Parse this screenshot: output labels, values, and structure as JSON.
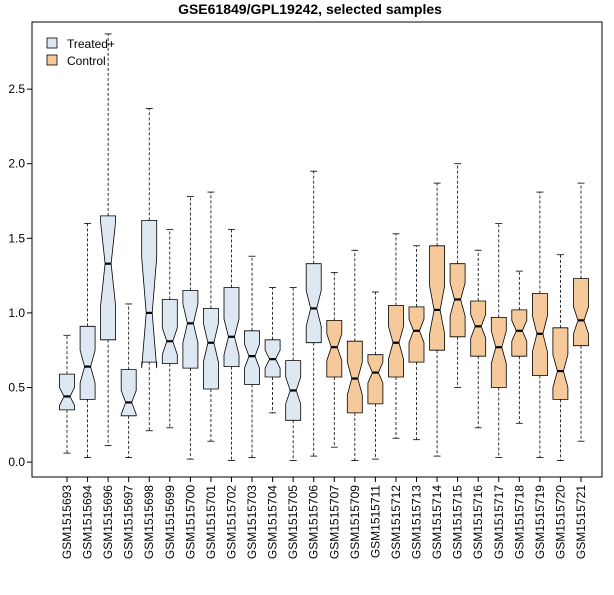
{
  "chart_data": {
    "type": "boxplot",
    "title": "GSE61849/GPL19242, selected samples",
    "xlabel": "",
    "ylabel": "",
    "ylim": [
      -0.1,
      2.95
    ],
    "yticks": [
      0.0,
      0.5,
      1.0,
      1.5,
      2.0,
      2.5
    ],
    "ytick_labels": [
      "0.0",
      "0.5",
      "1.0",
      "1.5",
      "2.0",
      "2.5"
    ],
    "notched": true,
    "grid": false,
    "legend": {
      "position": "top-left",
      "entries": [
        {
          "label": "Treated+",
          "color": "#dde8f3"
        },
        {
          "label": "Control",
          "color": "#f5c99a"
        }
      ]
    },
    "colors": {
      "Treated+": "#dde8f3",
      "Control": "#f5c99a",
      "stroke": "#000000"
    },
    "samples": [
      {
        "name": "GSM1515693",
        "group": "Treated+",
        "min": 0.06,
        "q1": 0.35,
        "median": 0.44,
        "q3": 0.59,
        "max": 0.85,
        "notch_lo": 0.38,
        "notch_hi": 0.5
      },
      {
        "name": "GSM1515694",
        "group": "Treated+",
        "min": 0.03,
        "q1": 0.42,
        "median": 0.64,
        "q3": 0.91,
        "max": 1.6,
        "notch_lo": 0.53,
        "notch_hi": 0.75
      },
      {
        "name": "GSM1515696",
        "group": "Treated+",
        "min": 0.11,
        "q1": 0.82,
        "median": 1.33,
        "q3": 1.65,
        "max": 2.87,
        "notch_lo": 1.05,
        "notch_hi": 1.61
      },
      {
        "name": "GSM1515697",
        "group": "Treated+",
        "min": 0.03,
        "q1": 0.31,
        "median": 0.4,
        "q3": 0.62,
        "max": 1.06,
        "notch_lo": 0.32,
        "notch_hi": 0.48
      },
      {
        "name": "GSM1515698",
        "group": "Treated+",
        "min": 0.21,
        "q1": 0.67,
        "median": 1.0,
        "q3": 1.62,
        "max": 2.37,
        "notch_lo": 0.63,
        "notch_hi": 1.37
      },
      {
        "name": "GSM1515699",
        "group": "Treated+",
        "min": 0.23,
        "q1": 0.66,
        "median": 0.81,
        "q3": 1.09,
        "max": 1.56,
        "notch_lo": 0.72,
        "notch_hi": 0.9
      },
      {
        "name": "GSM1515700",
        "group": "Treated+",
        "min": 0.02,
        "q1": 0.63,
        "median": 0.93,
        "q3": 1.15,
        "max": 1.78,
        "notch_lo": 0.8,
        "notch_hi": 1.06
      },
      {
        "name": "GSM1515701",
        "group": "Treated+",
        "min": 0.14,
        "q1": 0.49,
        "median": 0.8,
        "q3": 1.03,
        "max": 1.81,
        "notch_lo": 0.67,
        "notch_hi": 0.93
      },
      {
        "name": "GSM1515702",
        "group": "Treated+",
        "min": 0.01,
        "q1": 0.64,
        "median": 0.84,
        "q3": 1.17,
        "max": 1.56,
        "notch_lo": 0.72,
        "notch_hi": 0.96
      },
      {
        "name": "GSM1515703",
        "group": "Treated+",
        "min": 0.03,
        "q1": 0.52,
        "median": 0.71,
        "q3": 0.88,
        "max": 1.38,
        "notch_lo": 0.63,
        "notch_hi": 0.79
      },
      {
        "name": "GSM1515704",
        "group": "Treated+",
        "min": 0.33,
        "q1": 0.57,
        "median": 0.69,
        "q3": 0.82,
        "max": 1.17,
        "notch_lo": 0.63,
        "notch_hi": 0.75
      },
      {
        "name": "GSM1515705",
        "group": "Treated+",
        "min": 0.01,
        "q1": 0.28,
        "median": 0.48,
        "q3": 0.68,
        "max": 1.17,
        "notch_lo": 0.39,
        "notch_hi": 0.57
      },
      {
        "name": "GSM1515706",
        "group": "Treated+",
        "min": 0.04,
        "q1": 0.8,
        "median": 1.03,
        "q3": 1.33,
        "max": 1.95,
        "notch_lo": 0.91,
        "notch_hi": 1.15
      },
      {
        "name": "GSM1515707",
        "group": "Control",
        "min": 0.1,
        "q1": 0.57,
        "median": 0.77,
        "q3": 0.95,
        "max": 1.27,
        "notch_lo": 0.68,
        "notch_hi": 0.86
      },
      {
        "name": "GSM1515709",
        "group": "Control",
        "min": 0.01,
        "q1": 0.33,
        "median": 0.56,
        "q3": 0.81,
        "max": 1.42,
        "notch_lo": 0.45,
        "notch_hi": 0.67
      },
      {
        "name": "GSM1515711",
        "group": "Control",
        "min": 0.02,
        "q1": 0.39,
        "median": 0.6,
        "q3": 0.72,
        "max": 1.14,
        "notch_lo": 0.53,
        "notch_hi": 0.67
      },
      {
        "name": "GSM1515712",
        "group": "Control",
        "min": 0.16,
        "q1": 0.57,
        "median": 0.8,
        "q3": 1.05,
        "max": 1.53,
        "notch_lo": 0.69,
        "notch_hi": 0.91
      },
      {
        "name": "GSM1515713",
        "group": "Control",
        "min": 0.15,
        "q1": 0.67,
        "median": 0.88,
        "q3": 1.04,
        "max": 1.45,
        "notch_lo": 0.8,
        "notch_hi": 0.96
      },
      {
        "name": "GSM1515714",
        "group": "Control",
        "min": 0.04,
        "q1": 0.75,
        "median": 1.02,
        "q3": 1.45,
        "max": 1.87,
        "notch_lo": 0.86,
        "notch_hi": 1.18
      },
      {
        "name": "GSM1515715",
        "group": "Control",
        "min": 0.5,
        "q1": 0.84,
        "median": 1.09,
        "q3": 1.33,
        "max": 2.0,
        "notch_lo": 0.98,
        "notch_hi": 1.2
      },
      {
        "name": "GSM1515716",
        "group": "Control",
        "min": 0.23,
        "q1": 0.71,
        "median": 0.91,
        "q3": 1.08,
        "max": 1.42,
        "notch_lo": 0.83,
        "notch_hi": 0.99
      },
      {
        "name": "GSM1515717",
        "group": "Control",
        "min": 0.03,
        "q1": 0.5,
        "median": 0.77,
        "q3": 0.97,
        "max": 1.6,
        "notch_lo": 0.66,
        "notch_hi": 0.88
      },
      {
        "name": "GSM1515718",
        "group": "Control",
        "min": 0.26,
        "q1": 0.71,
        "median": 0.88,
        "q3": 1.02,
        "max": 1.28,
        "notch_lo": 0.81,
        "notch_hi": 0.95
      },
      {
        "name": "GSM1515719",
        "group": "Control",
        "min": 0.03,
        "q1": 0.58,
        "median": 0.86,
        "q3": 1.13,
        "max": 1.81,
        "notch_lo": 0.74,
        "notch_hi": 0.98
      },
      {
        "name": "GSM1515720",
        "group": "Control",
        "min": 0.01,
        "q1": 0.42,
        "median": 0.61,
        "q3": 0.9,
        "max": 1.39,
        "notch_lo": 0.5,
        "notch_hi": 0.72
      },
      {
        "name": "GSM1515721",
        "group": "Control",
        "min": 0.14,
        "q1": 0.78,
        "median": 0.95,
        "q3": 1.23,
        "max": 1.87,
        "notch_lo": 0.86,
        "notch_hi": 1.04
      }
    ]
  }
}
